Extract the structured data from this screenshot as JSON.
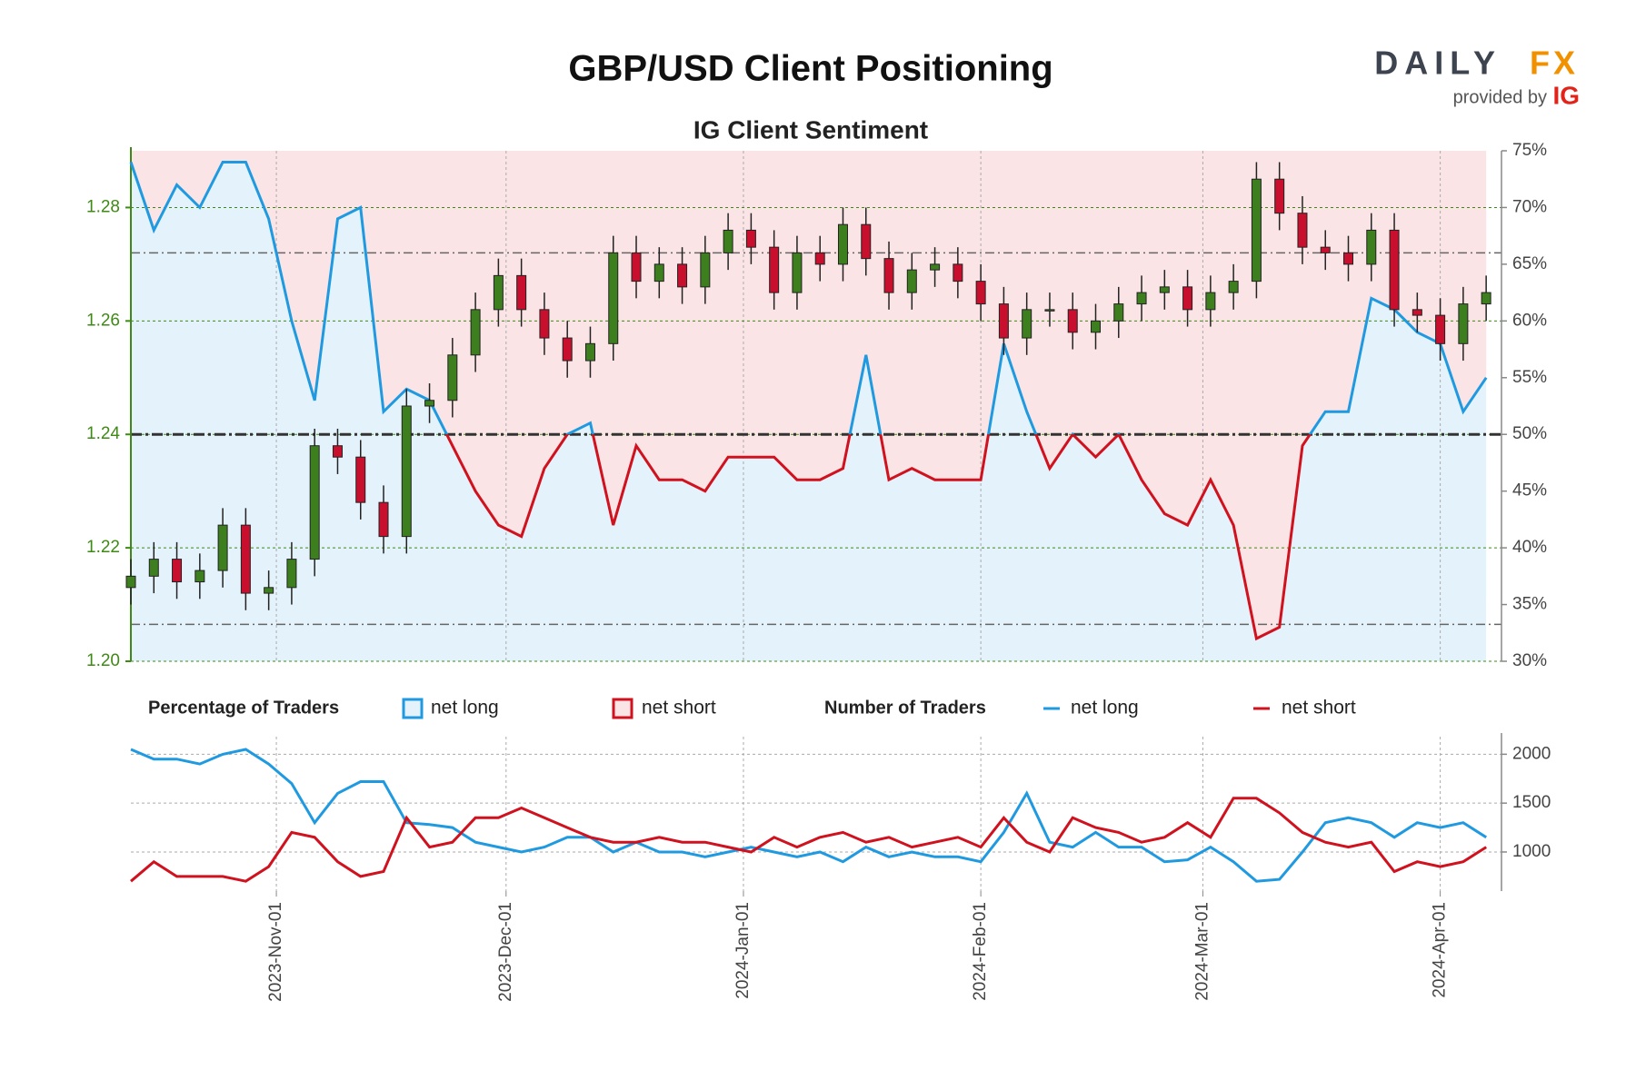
{
  "logo": {
    "brand": "DAILY",
    "brand_accent": "FX",
    "tagline": "provided by",
    "partner": "IG"
  },
  "chart_data": [
    {
      "type": "candlestick",
      "title": "GBP/USD Client Positioning",
      "subtitle": "IG Client Sentiment",
      "legend_title": "Percentage of Traders",
      "x": [
        "2023-10-13",
        "2023-10-16",
        "2023-10-19",
        "2023-10-22",
        "2023-10-25",
        "2023-10-28",
        "2023-10-31",
        "2023-11-03",
        "2023-11-06",
        "2023-11-09",
        "2023-11-12",
        "2023-11-15",
        "2023-11-18",
        "2023-11-21",
        "2023-11-24",
        "2023-11-27",
        "2023-11-30",
        "2023-12-03",
        "2023-12-06",
        "2023-12-09",
        "2023-12-12",
        "2023-12-15",
        "2023-12-18",
        "2023-12-21",
        "2023-12-24",
        "2023-12-27",
        "2023-12-30",
        "2024-01-02",
        "2024-01-05",
        "2024-01-08",
        "2024-01-11",
        "2024-01-14",
        "2024-01-17",
        "2024-01-20",
        "2024-01-23",
        "2024-01-26",
        "2024-01-29",
        "2024-02-01",
        "2024-02-04",
        "2024-02-07",
        "2024-02-10",
        "2024-02-13",
        "2024-02-16",
        "2024-02-19",
        "2024-02-22",
        "2024-02-25",
        "2024-02-28",
        "2024-03-02",
        "2024-03-05",
        "2024-03-08",
        "2024-03-11",
        "2024-03-14",
        "2024-03-17",
        "2024-03-20",
        "2024-03-23",
        "2024-03-26",
        "2024-03-29",
        "2024-04-01",
        "2024-04-04",
        "2024-04-07"
      ],
      "open": [
        1.213,
        1.215,
        1.218,
        1.214,
        1.216,
        1.224,
        1.212,
        1.213,
        1.218,
        1.238,
        1.236,
        1.228,
        1.222,
        1.245,
        1.246,
        1.254,
        1.262,
        1.268,
        1.262,
        1.257,
        1.253,
        1.256,
        1.272,
        1.267,
        1.27,
        1.266,
        1.272,
        1.276,
        1.273,
        1.265,
        1.272,
        1.27,
        1.277,
        1.271,
        1.265,
        1.269,
        1.27,
        1.267,
        1.263,
        1.257,
        1.262,
        1.262,
        1.258,
        1.26,
        1.263,
        1.265,
        1.266,
        1.262,
        1.265,
        1.267,
        1.285,
        1.279,
        1.273,
        1.272,
        1.27,
        1.276,
        1.262,
        1.261,
        1.256,
        1.263
      ],
      "high": [
        1.218,
        1.221,
        1.221,
        1.219,
        1.227,
        1.227,
        1.216,
        1.221,
        1.241,
        1.241,
        1.239,
        1.231,
        1.248,
        1.249,
        1.257,
        1.265,
        1.271,
        1.271,
        1.265,
        1.26,
        1.259,
        1.275,
        1.275,
        1.273,
        1.273,
        1.275,
        1.279,
        1.279,
        1.276,
        1.275,
        1.275,
        1.28,
        1.28,
        1.274,
        1.272,
        1.273,
        1.273,
        1.27,
        1.266,
        1.265,
        1.265,
        1.265,
        1.263,
        1.266,
        1.268,
        1.269,
        1.269,
        1.268,
        1.27,
        1.288,
        1.288,
        1.282,
        1.276,
        1.275,
        1.279,
        1.279,
        1.265,
        1.264,
        1.266,
        1.268
      ],
      "low": [
        1.21,
        1.212,
        1.211,
        1.211,
        1.213,
        1.209,
        1.209,
        1.21,
        1.215,
        1.233,
        1.225,
        1.219,
        1.219,
        1.242,
        1.243,
        1.251,
        1.259,
        1.259,
        1.254,
        1.25,
        1.25,
        1.253,
        1.264,
        1.264,
        1.263,
        1.263,
        1.269,
        1.27,
        1.262,
        1.262,
        1.267,
        1.267,
        1.268,
        1.262,
        1.262,
        1.266,
        1.264,
        1.26,
        1.254,
        1.254,
        1.259,
        1.255,
        1.255,
        1.257,
        1.26,
        1.262,
        1.259,
        1.259,
        1.262,
        1.264,
        1.276,
        1.27,
        1.269,
        1.267,
        1.267,
        1.259,
        1.258,
        1.253,
        1.253,
        1.26
      ],
      "close": [
        1.215,
        1.218,
        1.214,
        1.216,
        1.224,
        1.212,
        1.213,
        1.218,
        1.238,
        1.236,
        1.228,
        1.222,
        1.245,
        1.246,
        1.254,
        1.262,
        1.268,
        1.262,
        1.257,
        1.253,
        1.256,
        1.272,
        1.267,
        1.27,
        1.266,
        1.272,
        1.276,
        1.273,
        1.265,
        1.272,
        1.27,
        1.277,
        1.271,
        1.265,
        1.269,
        1.27,
        1.267,
        1.263,
        1.257,
        1.262,
        1.262,
        1.258,
        1.26,
        1.263,
        1.265,
        1.266,
        1.262,
        1.265,
        1.267,
        1.285,
        1.279,
        1.273,
        1.272,
        1.27,
        1.276,
        1.262,
        1.261,
        1.256,
        1.263,
        1.265
      ],
      "up_color": "#3d7f1f",
      "down_color": "#c8102e",
      "axis_color": "#3f8a16",
      "series": [
        {
          "name": "net long",
          "color": "#1f9ae0",
          "fill": "#e4f2fb",
          "axis": "y2",
          "values": [
            74,
            68,
            72,
            70,
            74,
            74,
            69,
            60,
            53,
            69,
            70,
            52,
            54,
            53,
            49,
            45,
            42,
            41,
            47,
            50,
            51,
            42,
            49,
            46,
            46,
            45,
            48,
            48,
            48,
            46,
            46,
            47,
            57,
            46,
            47,
            46,
            46,
            46,
            58,
            52,
            47,
            50,
            48,
            50,
            46,
            43,
            42,
            46,
            42,
            32,
            33,
            49,
            52,
            52,
            62,
            61,
            59,
            58,
            52,
            55
          ]
        }
      ],
      "complement": {
        "name": "net short",
        "color": "#d0111e",
        "fill": "#fbe4e5"
      },
      "xlim": [
        "2023-10-13",
        "2024-04-09"
      ],
      "xticks": [
        "2023-11-01",
        "2023-12-01",
        "2024-01-01",
        "2024-02-01",
        "2024-03-01",
        "2024-04-01"
      ],
      "ylim": [
        1.2,
        1.29
      ],
      "yticks": [
        {
          "value": 1.2,
          "label": "1.20"
        },
        1.22,
        1.24,
        1.26,
        1.28
      ],
      "y2lim": [
        30,
        75
      ],
      "y2ticks": [
        {
          "value": 30,
          "label": "30%"
        },
        {
          "value": 35,
          "label": "35%"
        },
        {
          "value": 40,
          "label": "40%"
        },
        {
          "value": 45,
          "label": "45%"
        },
        {
          "value": 50,
          "label": "50%"
        },
        {
          "value": 55,
          "label": "55%"
        },
        {
          "value": 60,
          "label": "60%"
        },
        {
          "value": 65,
          "label": "65%"
        },
        {
          "value": 70,
          "label": "70%"
        },
        {
          "value": 75,
          "label": "75%"
        }
      ],
      "hlines": [
        1.272,
        1.2065
      ],
      "y2hlines": [
        50
      ],
      "grid": true
    },
    {
      "type": "line",
      "legend_title": "Number of Traders",
      "x": [
        "2023-10-13",
        "2023-10-16",
        "2023-10-19",
        "2023-10-22",
        "2023-10-25",
        "2023-10-28",
        "2023-10-31",
        "2023-11-03",
        "2023-11-06",
        "2023-11-09",
        "2023-11-12",
        "2023-11-15",
        "2023-11-18",
        "2023-11-21",
        "2023-11-24",
        "2023-11-27",
        "2023-11-30",
        "2023-12-03",
        "2023-12-06",
        "2023-12-09",
        "2023-12-12",
        "2023-12-15",
        "2023-12-18",
        "2023-12-21",
        "2023-12-24",
        "2023-12-27",
        "2023-12-30",
        "2024-01-02",
        "2024-01-05",
        "2024-01-08",
        "2024-01-11",
        "2024-01-14",
        "2024-01-17",
        "2024-01-20",
        "2024-01-23",
        "2024-01-26",
        "2024-01-29",
        "2024-02-01",
        "2024-02-04",
        "2024-02-07",
        "2024-02-10",
        "2024-02-13",
        "2024-02-16",
        "2024-02-19",
        "2024-02-22",
        "2024-02-25",
        "2024-02-28",
        "2024-03-02",
        "2024-03-05",
        "2024-03-08",
        "2024-03-11",
        "2024-03-14",
        "2024-03-17",
        "2024-03-20",
        "2024-03-23",
        "2024-03-26",
        "2024-03-29",
        "2024-04-01",
        "2024-04-04",
        "2024-04-07"
      ],
      "series": [
        {
          "name": "net long",
          "color": "#1f9ae0",
          "values": [
            2050,
            1950,
            1950,
            1900,
            2000,
            2050,
            1900,
            1700,
            1300,
            1600,
            1720,
            1720,
            1300,
            1280,
            1250,
            1100,
            1050,
            1000,
            1050,
            1150,
            1150,
            1000,
            1100,
            1000,
            1000,
            950,
            1000,
            1050,
            1000,
            950,
            1000,
            900,
            1050,
            950,
            1000,
            950,
            950,
            900,
            1200,
            1600,
            1100,
            1050,
            1200,
            1050,
            1050,
            900,
            920,
            1050,
            900,
            700,
            720,
            1000,
            1300,
            1350,
            1300,
            1150,
            1300,
            1250,
            1300,
            1150
          ]
        },
        {
          "name": "net short",
          "color": "#d0111e",
          "values": [
            700,
            900,
            750,
            750,
            750,
            700,
            850,
            1200,
            1150,
            900,
            750,
            800,
            1350,
            1050,
            1100,
            1350,
            1350,
            1450,
            1350,
            1250,
            1150,
            1100,
            1100,
            1150,
            1100,
            1100,
            1050,
            1000,
            1150,
            1050,
            1150,
            1200,
            1100,
            1150,
            1050,
            1100,
            1150,
            1050,
            1350,
            1100,
            1000,
            1350,
            1250,
            1200,
            1100,
            1150,
            1300,
            1150,
            1550,
            1550,
            1400,
            1200,
            1100,
            1050,
            1100,
            800,
            900,
            850,
            900,
            1050
          ]
        }
      ],
      "xlim": [
        "2023-10-13",
        "2024-04-09"
      ],
      "xticks": [
        {
          "value": "2023-11-01",
          "label": "2023-Nov-01"
        },
        {
          "value": "2023-12-01",
          "label": "2023-Dec-01"
        },
        {
          "value": "2024-01-01",
          "label": "2024-Jan-01"
        },
        {
          "value": "2024-02-01",
          "label": "2024-Feb-01"
        },
        {
          "value": "2024-03-01",
          "label": "2024-Mar-01"
        },
        {
          "value": "2024-04-01",
          "label": "2024-Apr-01"
        }
      ],
      "ylim": [
        600,
        2180
      ],
      "yticks": [
        1000,
        1500,
        2000
      ],
      "grid": true
    }
  ]
}
